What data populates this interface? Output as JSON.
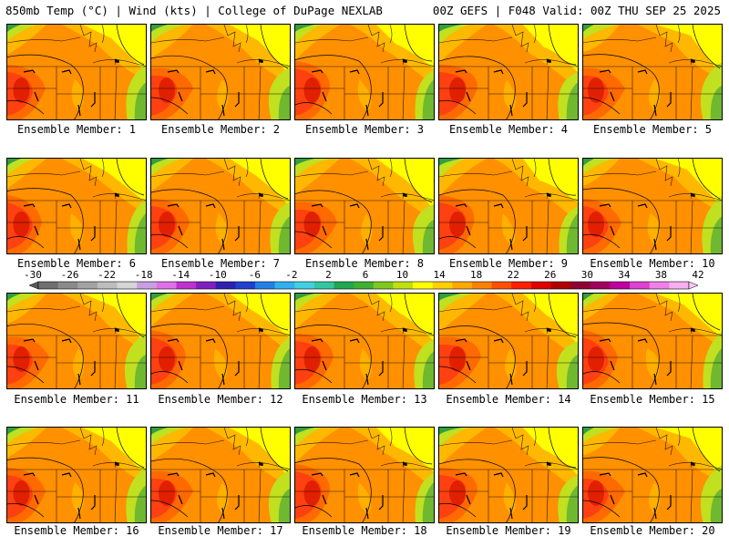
{
  "header": {
    "left": "850mb Temp (°C) | Wind (kts) | College of DuPage NEXLAB",
    "right": "00Z GEFS | F048 Valid: 00Z THU SEP 25 2025"
  },
  "panel_label_prefix": "Ensemble Member: ",
  "members": [
    1,
    2,
    3,
    4,
    5,
    6,
    7,
    8,
    9,
    10,
    11,
    12,
    13,
    14,
    15,
    16,
    17,
    18,
    19,
    20
  ],
  "colorbar": {
    "labels": [
      "-30",
      "-26",
      "-22",
      "-18",
      "-14",
      "-10",
      "-6",
      "-2",
      "2",
      "6",
      "10",
      "14",
      "18",
      "22",
      "26",
      "30",
      "34",
      "38",
      "42"
    ],
    "colors": [
      "#6f6f6f",
      "#8a8a8a",
      "#a3a3a3",
      "#bdbdbd",
      "#d6d6d6",
      "#c8a0e0",
      "#e070e8",
      "#c030d0",
      "#8020c0",
      "#3020b0",
      "#2040d0",
      "#2080e8",
      "#30b0f0",
      "#40d0e0",
      "#30c8a0",
      "#20a850",
      "#40b030",
      "#80c820",
      "#c0e010",
      "#ffff00",
      "#ffd000",
      "#ffa800",
      "#ff8000",
      "#ff5000",
      "#ff2000",
      "#e00000",
      "#b00000",
      "#900030",
      "#a00060",
      "#c000a0",
      "#e040d0",
      "#f080e8",
      "#f8b0f0"
    ]
  },
  "map_colors": {
    "deep_red": "#e02000",
    "red": "#ff4010",
    "orange_red": "#ff6a00",
    "orange": "#ff9000",
    "amber": "#ffb800",
    "yellow": "#ffff00",
    "lime": "#c0e020",
    "green": "#70b830",
    "dark_green": "#30a040"
  }
}
